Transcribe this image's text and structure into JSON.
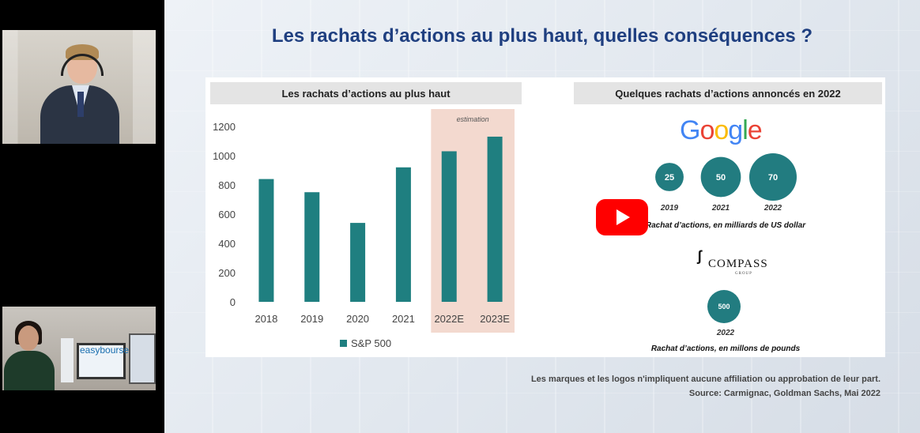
{
  "slide": {
    "title": "Les rachats d’actions au plus haut, quelles conséquences ?",
    "left_panel_title": "Les rachats d’actions au plus haut",
    "right_panel_title": "Quelques rachats d’actions annoncés en 2022",
    "footnote_line1": "Les marques et les logos n'impliquent aucune affiliation ou approbation de leur part.",
    "footnote_line2": "Source: Carmignac, Goldman Sachs, Mai 2022"
  },
  "chart_data": [
    {
      "type": "bar",
      "title": "Les rachats d’actions au plus haut",
      "categories": [
        "2018",
        "2019",
        "2020",
        "2021",
        "2022E",
        "2023E"
      ],
      "series": [
        {
          "name": "S&P 500",
          "values": [
            840,
            750,
            540,
            920,
            1030,
            1130
          ]
        }
      ],
      "ylim": [
        0,
        1200
      ],
      "yticks": [
        "0",
        "200",
        "400",
        "600",
        "800",
        "1000",
        "1200"
      ],
      "annotation": "estimation",
      "highlighted_categories": [
        "2022E",
        "2023E"
      ],
      "bar_color": "#1f7f80",
      "highlight_color": "#f3d9cf",
      "legend_position": "bottom",
      "grid": false
    },
    {
      "type": "scatter",
      "title": "Google",
      "categories": [
        "2019",
        "2021",
        "2022"
      ],
      "values": [
        25,
        50,
        70
      ],
      "caption": "Rachat d’actions, en milliards de US dollar",
      "bubble_color": "#227c80"
    },
    {
      "type": "scatter",
      "title": "COMPASS",
      "subtitle": "GROUP",
      "categories": [
        "2022"
      ],
      "values": [
        500
      ],
      "caption": "Rachat d’actions, en millons de pounds",
      "bubble_color": "#227c80"
    }
  ],
  "logos": {
    "google": "Google",
    "compass": "COMPASS",
    "compass_sub": "GROUP",
    "webcam_brand": "easybourse"
  },
  "colors": {
    "title_blue": "#1f3f80",
    "play_red": "#ff0000"
  },
  "icons": {
    "video_overlay": "youtube-play-icon"
  }
}
